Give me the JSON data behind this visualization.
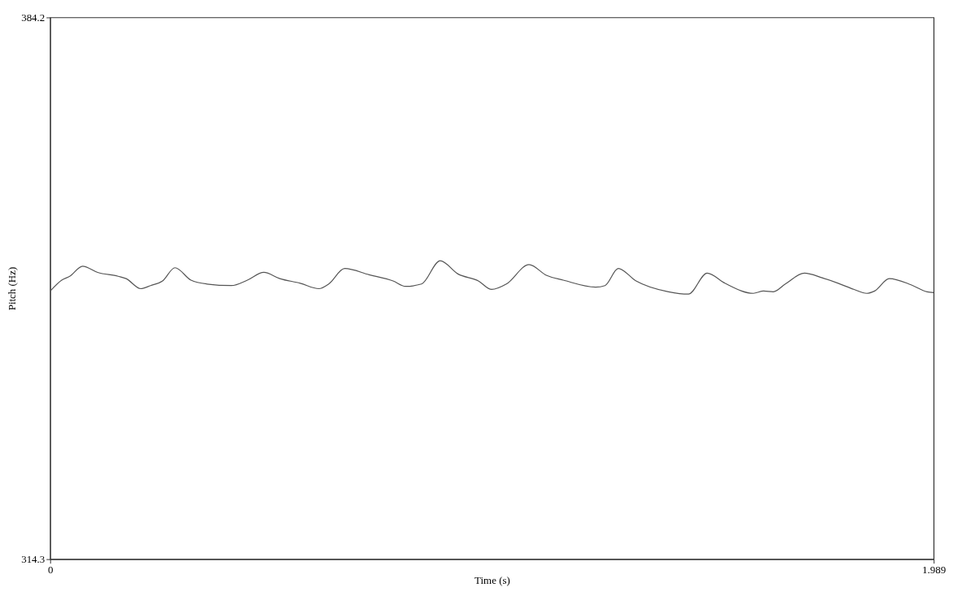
{
  "chart_data": {
    "type": "line",
    "xlabel": "Time (s)",
    "ylabel": "Pitch (Hz)",
    "xlim": [
      0,
      1.989
    ],
    "xticks": [
      0,
      1.989
    ],
    "ylim": [
      314.3,
      384.2
    ],
    "yticks": [
      314.3,
      384.2
    ],
    "grid": false,
    "series": [
      {
        "color": "#555555",
        "x": [
          0.002,
          0.026,
          0.044,
          0.073,
          0.107,
          0.153,
          0.171,
          0.204,
          0.226,
          0.253,
          0.281,
          0.317,
          0.353,
          0.408,
          0.444,
          0.481,
          0.517,
          0.563,
          0.605,
          0.627,
          0.663,
          0.718,
          0.772,
          0.8,
          0.836,
          0.878,
          0.918,
          0.964,
          0.994,
          1.027,
          1.078,
          1.118,
          1.155,
          1.228,
          1.249,
          1.279,
          1.319,
          1.392,
          1.437,
          1.479,
          1.519,
          1.583,
          1.606,
          1.628,
          1.655,
          1.698,
          1.738,
          1.774,
          1.81,
          1.838,
          1.856,
          1.889,
          1.938,
          1.974,
          1.989
        ],
        "values": [
          349.0,
          350.3,
          350.8,
          352.1,
          351.3,
          350.8,
          350.5,
          349.2,
          349.6,
          350.2,
          351.9,
          350.3,
          349.8,
          349.6,
          350.3,
          351.3,
          350.5,
          349.9,
          349.2,
          349.8,
          351.8,
          351.0,
          350.2,
          349.5,
          349.8,
          352.8,
          351.1,
          350.2,
          349.1,
          349.8,
          352.3,
          350.9,
          350.3,
          349.4,
          349.6,
          351.8,
          350.2,
          348.8,
          348.5,
          351.2,
          349.9,
          348.6,
          348.9,
          348.8,
          349.8,
          351.2,
          350.6,
          349.9,
          349.1,
          348.6,
          348.9,
          350.5,
          349.7,
          348.8,
          348.7
        ]
      }
    ]
  }
}
